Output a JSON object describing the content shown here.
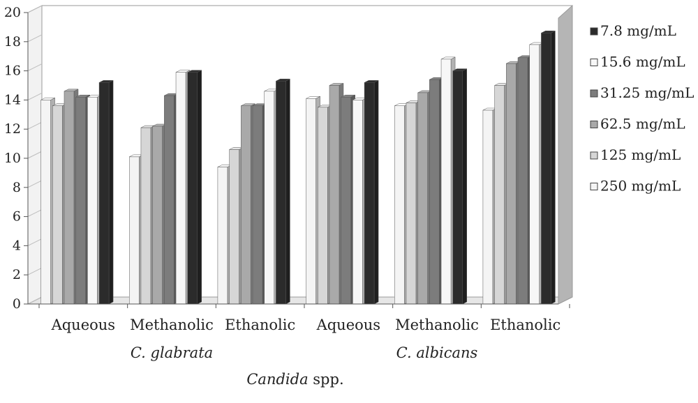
{
  "chart_data": {
    "type": "bar",
    "style": "3d-clustered-column",
    "ylim": [
      0,
      20
    ],
    "yticks": [
      0,
      2,
      4,
      6,
      8,
      10,
      12,
      14,
      16,
      18,
      20
    ],
    "grid": false,
    "legend_position": "right",
    "categories": [
      "Aqueous",
      "Methanolic",
      "Ethanolic",
      "Aqueous",
      "Methanolic",
      "Ethanolic"
    ],
    "groups": [
      {
        "label": "C. glabrata",
        "categories": [
          0,
          1,
          2
        ]
      },
      {
        "label": "C. albicans",
        "categories": [
          3,
          4,
          5
        ]
      }
    ],
    "xlabel": {
      "italic_part": "Candida",
      "plain_part": " spp."
    },
    "ylabel": "",
    "series": [
      {
        "name": "250 mg/mL",
        "color": "#f4f4f4",
        "values": [
          14.0,
          10.1,
          9.4,
          14.1,
          13.6,
          13.3
        ]
      },
      {
        "name": "125 mg/mL",
        "color": "#d6d6d6",
        "values": [
          13.6,
          12.1,
          10.6,
          13.5,
          13.8,
          15.0
        ]
      },
      {
        "name": "62.5 mg/mL",
        "color": "#a9a9a9",
        "values": [
          14.6,
          12.2,
          13.6,
          15.0,
          14.5,
          16.5
        ]
      },
      {
        "name": "31.25 mg/mL",
        "color": "#7c7c7c",
        "values": [
          14.2,
          14.3,
          13.6,
          14.2,
          15.4,
          16.9
        ]
      },
      {
        "name": "15.6 mg/mL",
        "color": "#f7f7f7",
        "values": [
          14.2,
          15.9,
          14.6,
          14.0,
          16.8,
          17.8
        ]
      },
      {
        "name": "7.8 mg/mL",
        "color": "#2b2b2b",
        "values": [
          15.2,
          15.9,
          15.3,
          15.2,
          16.0,
          18.6
        ]
      }
    ],
    "legend_order": [
      "7.8 mg/mL",
      "15.6 mg/mL",
      "31.25 mg/mL",
      "62.5 mg/mL",
      "125 mg/mL",
      "250 mg/mL"
    ]
  }
}
